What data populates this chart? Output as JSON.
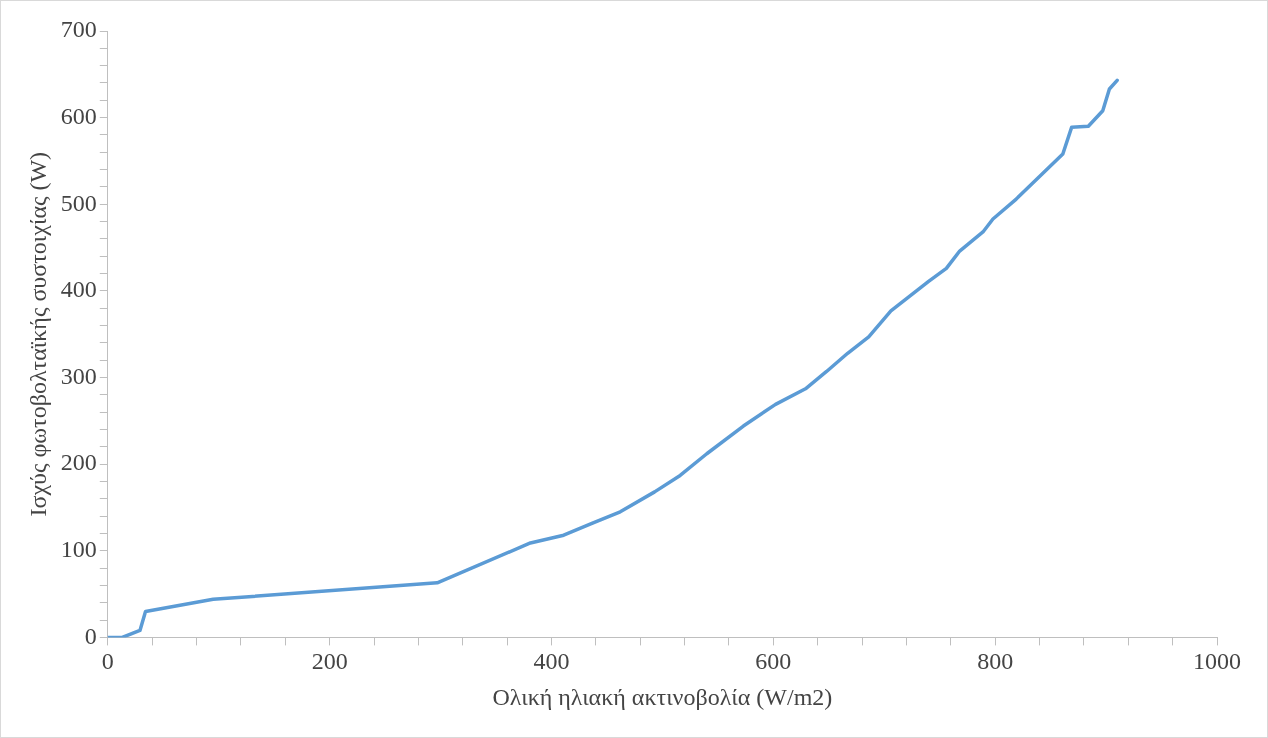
{
  "chart_data": {
    "type": "line",
    "xlabel": "Ολική ηλιακή ακτινοβολία (W/m2)",
    "ylabel": "Ισχύς φωτοβολταϊκής συστοιχίας (W)",
    "x": [
      0,
      13,
      29,
      34,
      95,
      297,
      381,
      411,
      437,
      462,
      493,
      516,
      540,
      573,
      602,
      629,
      648,
      667,
      686,
      706,
      740,
      756,
      768,
      789,
      798,
      819,
      840,
      861,
      869,
      884,
      897,
      903,
      910
    ],
    "series": [
      {
        "color": "#5b9bd5",
        "values": [
          0,
          0,
          8,
          30,
          44,
          63,
          109,
          118,
          132,
          145,
          168,
          187,
          212,
          244,
          269,
          287,
          307,
          328,
          347,
          377,
          411,
          426,
          446,
          468,
          483,
          506,
          532,
          558,
          589,
          590,
          608,
          633,
          643
        ]
      }
    ],
    "xlim": [
      0,
      1000
    ],
    "xticks": [
      0,
      {
        "value": 40,
        "label": null
      },
      {
        "value": 80,
        "label": null
      },
      {
        "value": 120,
        "label": null
      },
      {
        "value": 160,
        "label": null
      },
      200,
      {
        "value": 240,
        "label": null
      },
      {
        "value": 280,
        "label": null
      },
      {
        "value": 320,
        "label": null
      },
      {
        "value": 360,
        "label": null
      },
      400,
      {
        "value": 440,
        "label": null
      },
      {
        "value": 480,
        "label": null
      },
      {
        "value": 520,
        "label": null
      },
      {
        "value": 560,
        "label": null
      },
      600,
      {
        "value": 640,
        "label": null
      },
      {
        "value": 680,
        "label": null
      },
      {
        "value": 720,
        "label": null
      },
      {
        "value": 760,
        "label": null
      },
      800,
      {
        "value": 840,
        "label": null
      },
      {
        "value": 880,
        "label": null
      },
      {
        "value": 920,
        "label": null
      },
      {
        "value": 960,
        "label": null
      },
      1000
    ],
    "ylim": [
      0,
      700
    ],
    "yticks": [
      0,
      {
        "value": 20,
        "label": null
      },
      {
        "value": 40,
        "label": null
      },
      {
        "value": 60,
        "label": null
      },
      {
        "value": 80,
        "label": null
      },
      100,
      {
        "value": 120,
        "label": null
      },
      {
        "value": 140,
        "label": null
      },
      {
        "value": 160,
        "label": null
      },
      {
        "value": 180,
        "label": null
      },
      200,
      {
        "value": 220,
        "label": null
      },
      {
        "value": 240,
        "label": null
      },
      {
        "value": 260,
        "label": null
      },
      {
        "value": 280,
        "label": null
      },
      300,
      {
        "value": 320,
        "label": null
      },
      {
        "value": 340,
        "label": null
      },
      {
        "value": 360,
        "label": null
      },
      {
        "value": 380,
        "label": null
      },
      400,
      {
        "value": 420,
        "label": null
      },
      {
        "value": 440,
        "label": null
      },
      {
        "value": 460,
        "label": null
      },
      {
        "value": 480,
        "label": null
      },
      500,
      {
        "value": 520,
        "label": null
      },
      {
        "value": 540,
        "label": null
      },
      {
        "value": 560,
        "label": null
      },
      {
        "value": 580,
        "label": null
      },
      600,
      {
        "value": 620,
        "label": null
      },
      {
        "value": 640,
        "label": null
      },
      {
        "value": 660,
        "label": null
      },
      {
        "value": 680,
        "label": null
      },
      700
    ],
    "grid": false,
    "legend": false,
    "marker": "none",
    "line_style": "solid"
  }
}
